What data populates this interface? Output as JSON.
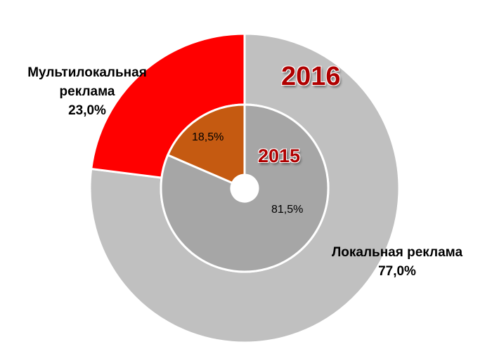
{
  "chart_data": [
    {
      "type": "pie",
      "ring": "outer",
      "title": "2016",
      "categories": [
        "Локальная реклама",
        "Мультилокальная реклама"
      ],
      "values": [
        77.0,
        23.0
      ],
      "value_labels": [
        "77,0%",
        "23,0%"
      ],
      "colors": [
        "#c0c0c0",
        "#ff0000"
      ]
    },
    {
      "type": "pie",
      "ring": "inner",
      "title": "2015",
      "categories": [
        "Локальная реклама",
        "Мультилокальная реклама"
      ],
      "values": [
        81.5,
        18.5
      ],
      "value_labels": [
        "81,5%",
        "18,5%"
      ],
      "colors": [
        "#a6a6a6",
        "#c55a11"
      ]
    }
  ],
  "labels": {
    "multi_line1": "Мультилокальная",
    "multi_line2": "реклама",
    "local": "Локальная реклама"
  }
}
